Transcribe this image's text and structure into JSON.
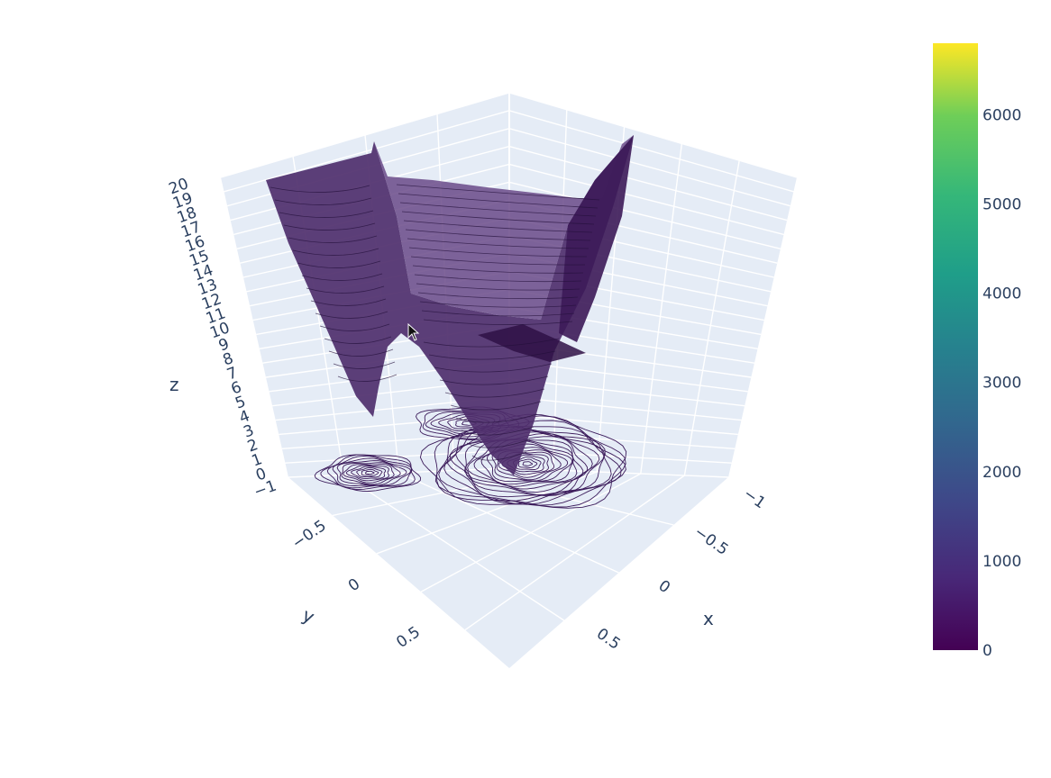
{
  "chart_data": {
    "type": "surface",
    "title": "",
    "colorscale": "viridis",
    "colors": {
      "scene_bg": "#e5ecf6",
      "grid": "#ffffff",
      "surface_top": "#5d3f7c",
      "surface_mid": "#4b2c6a",
      "surface_dark": "#3a1a55",
      "contour": "#3d1d5c",
      "font": "#2a3f5f"
    },
    "x_axis": {
      "title": "x",
      "ticks": [
        "−1",
        "−0.5",
        "0",
        "0.5"
      ]
    },
    "y_axis": {
      "title": "y",
      "ticks": [
        "−0.5",
        "0",
        "0.5"
      ]
    },
    "z_axis": {
      "title": "z",
      "range": [
        -1,
        20
      ],
      "ticks": [
        "−1",
        "0",
        "1",
        "2",
        "3",
        "4",
        "5",
        "6",
        "7",
        "8",
        "9",
        "10",
        "11",
        "12",
        "13",
        "14",
        "15",
        "16",
        "17",
        "18",
        "19",
        "20"
      ]
    },
    "colorbar": {
      "range": [
        0,
        6800
      ],
      "ticks": [
        "0",
        "1000",
        "2000",
        "3000",
        "4000",
        "5000",
        "6000"
      ],
      "tick_values": [
        0,
        1000,
        2000,
        3000,
        4000,
        5000,
        6000
      ]
    },
    "contours": {
      "z_projection": true
    }
  }
}
